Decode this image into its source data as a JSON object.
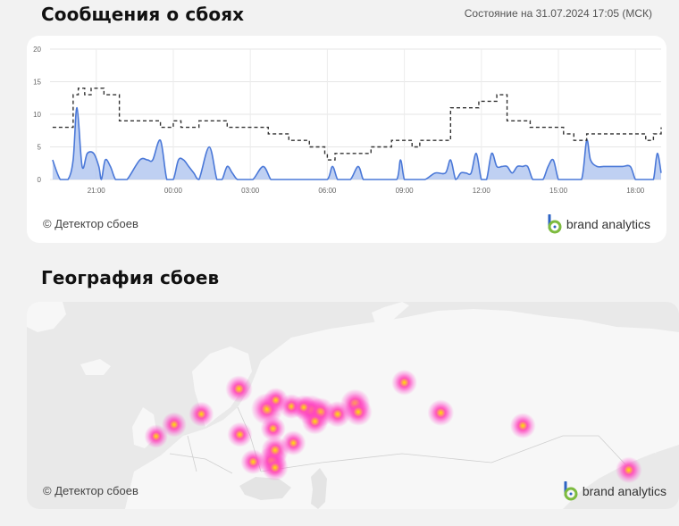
{
  "header": {
    "title": "Сообщения о сбоях",
    "status": "Состояние на 31.07.2024 17:05 (МСК)"
  },
  "chart_card": {
    "copyright": "© Детектор сбоев",
    "brand": "brand analytics"
  },
  "map_section": {
    "title": "География сбоев",
    "copyright": "© Детектор сбоев",
    "brand": "brand analytics"
  },
  "colors": {
    "reports_line": "#4a78d8",
    "reports_fill": "#a9c0ee",
    "baseline": "#333333",
    "brand_green": "#7dbb3f",
    "brand_blue": "#2d63c4",
    "heat_outer": "#ff3cc8",
    "heat_inner": "#ffe100"
  },
  "chart_data": {
    "type": "area",
    "title": "",
    "xlabel": "",
    "ylabel": "",
    "ylim": [
      0,
      20
    ],
    "yticks": [
      0,
      5,
      10,
      15,
      20
    ],
    "grid": true,
    "x_ticks": [
      "21:00",
      "00:00",
      "03:00",
      "06:00",
      "09:00",
      "12:00",
      "15:00",
      "18:00"
    ],
    "x_tick_hours": [
      21,
      24,
      27,
      30,
      33,
      36,
      39,
      42
    ],
    "x_range_hours": [
      19.2,
      43.0
    ],
    "series": [
      {
        "hours": [
          19.3,
          19.6,
          19.9,
          20.1,
          20.25,
          20.45,
          20.65,
          20.9,
          21.1,
          21.2,
          21.35,
          21.55,
          21.75,
          21.95,
          22.2,
          22.7,
          23.0,
          23.2,
          23.5,
          23.75,
          24.0,
          24.2,
          24.4,
          24.6,
          24.8,
          25.0,
          25.4,
          25.7,
          25.9,
          26.1,
          26.3,
          26.5,
          26.8,
          27.1,
          27.5,
          27.8,
          28.0,
          28.2,
          28.4,
          28.8,
          29.5,
          30.0,
          30.2,
          30.4,
          30.6,
          30.9,
          31.2,
          31.4,
          31.6,
          31.8,
          32.2,
          32.7,
          32.85,
          33.0,
          33.2,
          33.4,
          33.8,
          34.2,
          34.6,
          34.8,
          35.0,
          35.2,
          35.4,
          35.6,
          35.8,
          36.0,
          36.2,
          36.4,
          36.6,
          36.8,
          37.0,
          37.2,
          37.4,
          37.6,
          37.8,
          38.0,
          38.2,
          38.4,
          38.6,
          38.8,
          39.0,
          39.2,
          39.5,
          39.9,
          40.1,
          40.25,
          40.5,
          40.75,
          41.0,
          41.2,
          41.5,
          41.8,
          42.0,
          42.2,
          42.5,
          42.7,
          42.85,
          43.0
        ],
        "values": [
          3,
          0,
          0,
          3,
          11,
          2,
          4,
          4,
          2,
          0,
          3,
          2,
          0,
          0,
          0,
          3,
          3,
          3,
          6,
          0,
          0,
          3,
          3,
          2,
          1,
          0,
          5,
          0,
          0,
          2,
          1,
          0,
          0,
          0,
          2,
          0,
          0,
          0,
          0,
          0,
          0,
          0,
          2,
          0,
          0,
          0,
          2,
          0,
          0,
          0,
          0,
          0,
          3,
          0,
          0,
          0,
          0,
          1,
          1,
          3,
          0,
          1,
          1,
          1,
          4,
          0,
          0,
          4,
          2,
          2,
          2,
          1,
          2,
          2,
          2,
          0,
          0,
          0,
          2,
          3,
          0,
          0,
          0,
          0,
          6,
          3,
          2,
          2,
          2,
          2,
          2,
          2,
          0,
          0,
          0,
          0,
          4,
          1
        ]
      },
      {
        "hours": [
          19.3,
          19.8,
          20.1,
          20.3,
          20.55,
          20.8,
          21.1,
          21.3,
          21.6,
          21.9,
          22.4,
          22.9,
          23.2,
          23.5,
          23.8,
          24.0,
          24.3,
          24.6,
          25.0,
          25.4,
          25.7,
          26.1,
          26.5,
          27.0,
          27.3,
          27.7,
          28.0,
          28.5,
          28.8,
          29.0,
          29.3,
          29.7,
          29.9,
          30.0,
          30.3,
          30.6,
          31.0,
          31.4,
          31.7,
          32.0,
          32.5,
          32.9,
          33.3,
          33.6,
          34.0,
          34.4,
          34.8,
          35.2,
          35.5,
          35.9,
          36.3,
          36.6,
          37.0,
          37.3,
          37.6,
          37.9,
          38.3,
          38.8,
          39.2,
          39.6,
          39.8,
          40.1,
          40.4,
          40.8,
          41.2,
          41.6,
          42.0,
          42.4,
          42.7,
          43.0
        ],
        "values": [
          8,
          8,
          13,
          14,
          13,
          14,
          14,
          13,
          13,
          9,
          9,
          9,
          9,
          8,
          8,
          9,
          8,
          8,
          9,
          9,
          9,
          8,
          8,
          8,
          8,
          7,
          7,
          6,
          6,
          6,
          5,
          5,
          4,
          3,
          4,
          4,
          4,
          4,
          5,
          5,
          6,
          6,
          5,
          6,
          6,
          6,
          11,
          11,
          11,
          12,
          12,
          13,
          9,
          9,
          9,
          8,
          8,
          8,
          7,
          6,
          6,
          7,
          7,
          7,
          7,
          7,
          7,
          6,
          7,
          8
        ]
      }
    ]
  },
  "map_data": {
    "hotspots": [
      {
        "lat": 55.75,
        "lon": 37.62,
        "intensity": 1.0
      },
      {
        "lat": 55.5,
        "lon": 49.1,
        "intensity": 0.9
      },
      {
        "lat": 55.1,
        "lon": 51.5,
        "intensity": 0.8
      },
      {
        "lat": 56.8,
        "lon": 60.6,
        "intensity": 0.85
      },
      {
        "lat": 55.15,
        "lon": 61.4,
        "intensity": 0.7
      },
      {
        "lat": 54.7,
        "lon": 56.0,
        "intensity": 0.6
      },
      {
        "lat": 53.2,
        "lon": 50.1,
        "intensity": 0.6
      },
      {
        "lat": 45.04,
        "lon": 38.98,
        "intensity": 0.8
      },
      {
        "lat": 47.23,
        "lon": 39.72,
        "intensity": 0.7
      },
      {
        "lat": 43.6,
        "lon": 39.7,
        "intensity": 0.6
      },
      {
        "lat": 59.94,
        "lon": 30.31,
        "intensity": 0.65
      },
      {
        "lat": 56.3,
        "lon": 44.0,
        "intensity": 0.5
      },
      {
        "lat": 57.6,
        "lon": 39.9,
        "intensity": 0.5
      },
      {
        "lat": 54.7,
        "lon": 20.5,
        "intensity": 0.5
      },
      {
        "lat": 51.7,
        "lon": 39.2,
        "intensity": 0.5
      },
      {
        "lat": 48.7,
        "lon": 44.5,
        "intensity": 0.5
      },
      {
        "lat": 50.45,
        "lon": 30.52,
        "intensity": 0.5
      },
      {
        "lat": 52.52,
        "lon": 13.4,
        "intensity": 0.5
      },
      {
        "lat": 50.1,
        "lon": 8.7,
        "intensity": 0.4
      },
      {
        "lat": 54.98,
        "lon": 82.9,
        "intensity": 0.6
      },
      {
        "lat": 61.25,
        "lon": 73.4,
        "intensity": 0.55
      },
      {
        "lat": 52.3,
        "lon": 104.3,
        "intensity": 0.55
      },
      {
        "lat": 43.1,
        "lon": 131.9,
        "intensity": 0.6
      },
      {
        "lat": 44.8,
        "lon": 34.0,
        "intensity": 0.5
      },
      {
        "lat": 56.1,
        "lon": 47.2,
        "intensity": 0.5
      }
    ]
  }
}
